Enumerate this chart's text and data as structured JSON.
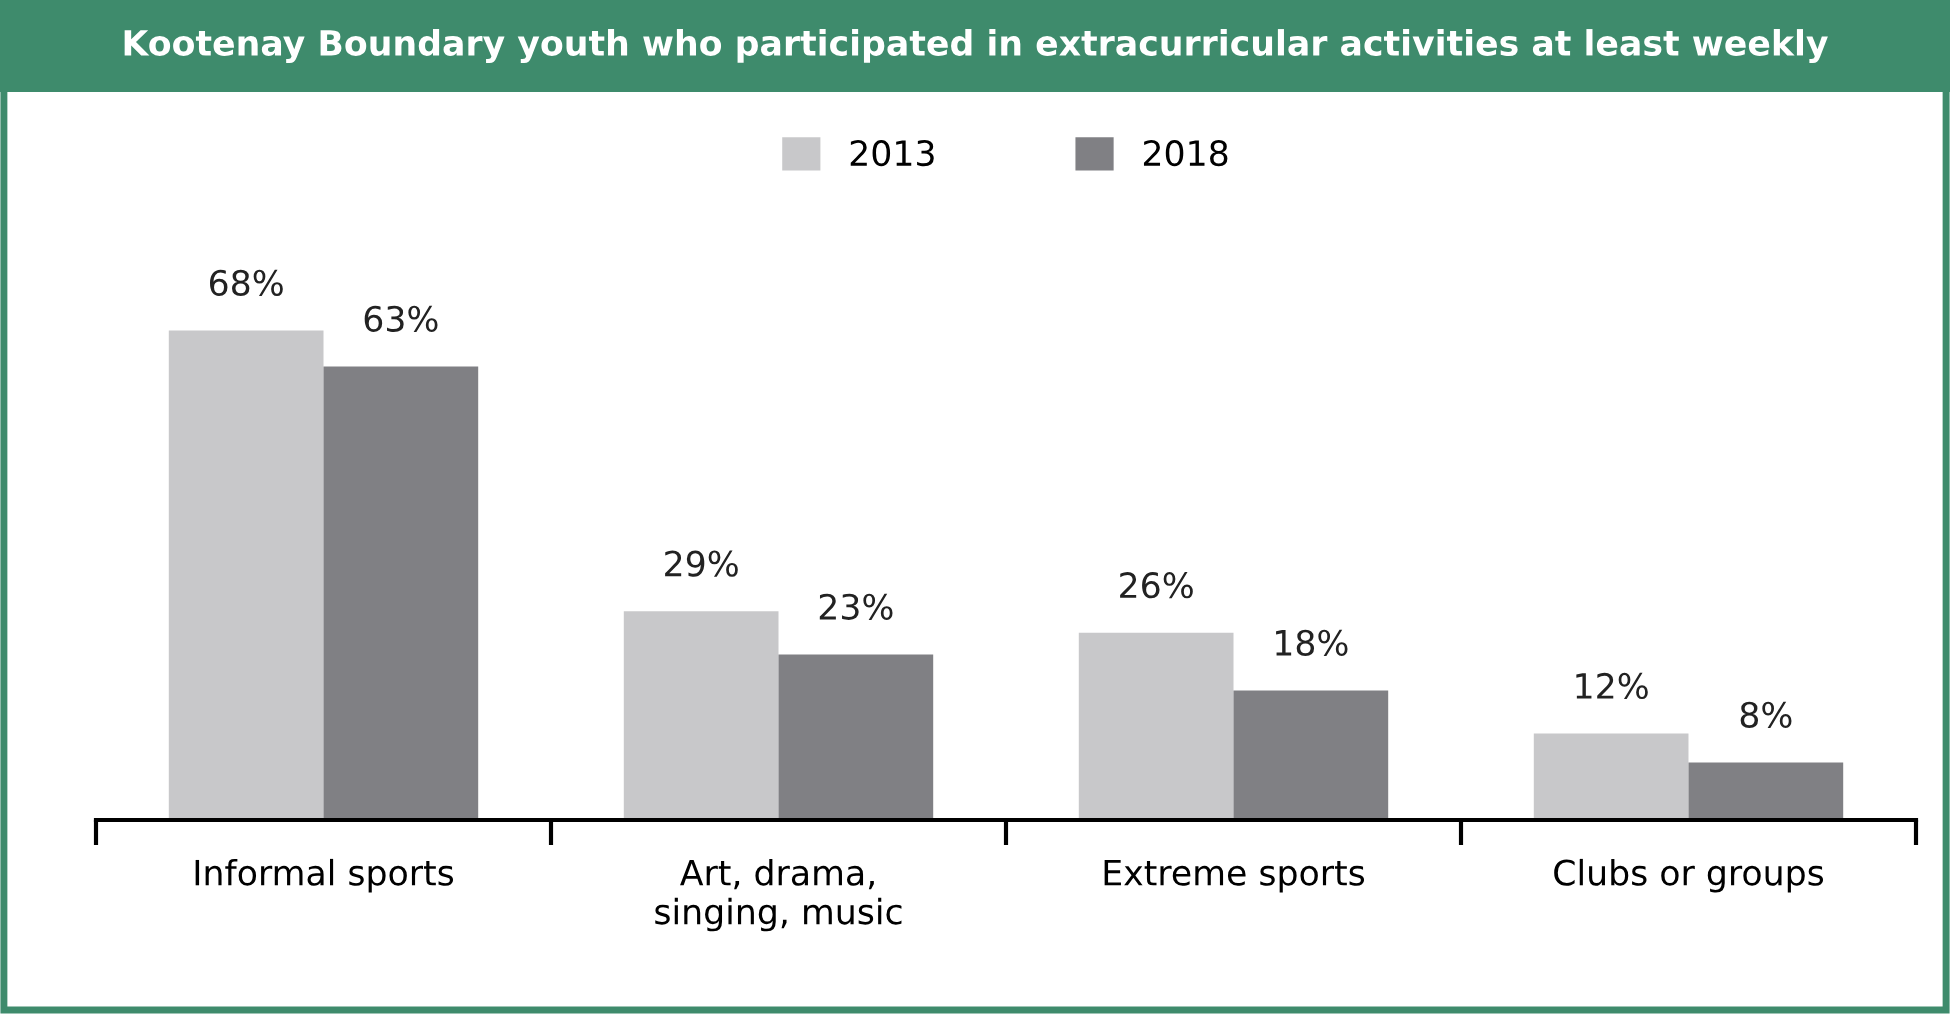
{
  "chart_data": {
    "type": "bar",
    "title": "Kootenay Boundary youth who participated in extracurricular activities at least weekly",
    "categories": [
      "Informal sports",
      "Art, drama,\nsinging, music",
      "Extreme sports",
      "Clubs or groups"
    ],
    "series": [
      {
        "name": "2013",
        "color": "#c8c8ca",
        "values": [
          68,
          29,
          26,
          12
        ],
        "value_labels": [
          "68%",
          "29%",
          "26%",
          "12%"
        ]
      },
      {
        "name": "2018",
        "color": "#808084",
        "values": [
          63,
          23,
          18,
          8
        ],
        "value_labels": [
          "63%",
          "23%",
          "18%",
          "8%"
        ]
      }
    ],
    "legend": "top"
  }
}
